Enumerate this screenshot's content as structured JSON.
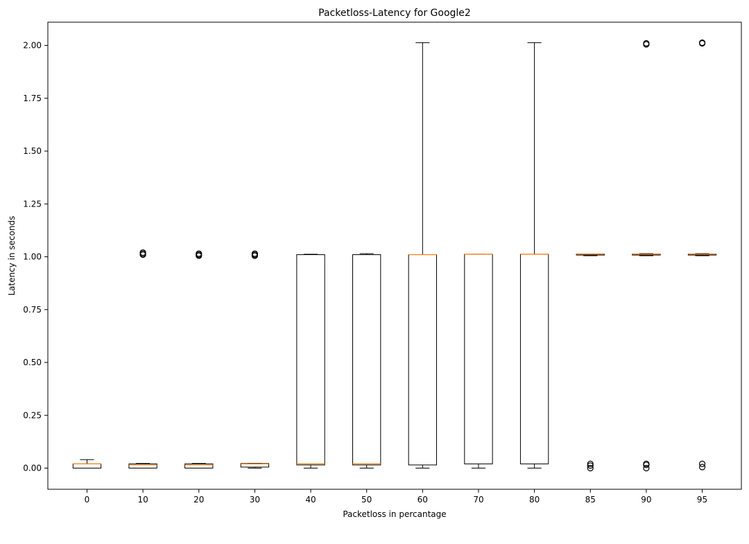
{
  "chart_data": {
    "type": "boxplot",
    "title": "Packetloss-Latency for Google2",
    "xlabel": "Packetloss in percantage",
    "ylabel": "Latency in seconds",
    "ylim": [
      -0.1,
      2.11
    ],
    "yticks": [
      "0.00",
      "0.25",
      "0.50",
      "0.75",
      "1.00",
      "1.25",
      "1.50",
      "1.75",
      "2.00"
    ],
    "grid": false,
    "colors": {
      "box": "#000000",
      "median": "#ff7f0e",
      "whisker": "#000000",
      "flier": "#000000"
    },
    "categories": [
      "0",
      "10",
      "20",
      "30",
      "40",
      "50",
      "60",
      "70",
      "80",
      "85",
      "90",
      "95"
    ],
    "boxes": [
      {
        "label": "0",
        "whislo": 0.0,
        "q1": 0.0,
        "med": 0.02,
        "q3": 0.02,
        "whishi": 0.04,
        "fliers": []
      },
      {
        "label": "10",
        "whislo": 0.0,
        "q1": 0.0,
        "med": 0.015,
        "q3": 0.02,
        "whishi": 0.022,
        "fliers": [
          1.01,
          1.015,
          1.02
        ]
      },
      {
        "label": "20",
        "whislo": 0.0,
        "q1": 0.0,
        "med": 0.015,
        "q3": 0.02,
        "whishi": 0.022,
        "fliers": [
          1.005,
          1.01,
          1.015
        ]
      },
      {
        "label": "30",
        "whislo": 0.0,
        "q1": 0.005,
        "med": 0.02,
        "q3": 0.022,
        "whishi": 0.022,
        "fliers": [
          1.005,
          1.01,
          1.015
        ]
      },
      {
        "label": "40",
        "whislo": 0.0,
        "q1": 0.015,
        "med": 0.02,
        "q3": 1.01,
        "whishi": 1.012,
        "fliers": []
      },
      {
        "label": "50",
        "whislo": 0.0,
        "q1": 0.015,
        "med": 0.02,
        "q3": 1.01,
        "whishi": 1.015,
        "fliers": []
      },
      {
        "label": "60",
        "whislo": 0.0,
        "q1": 0.015,
        "med": 1.01,
        "q3": 1.01,
        "whishi": 2.013,
        "fliers": []
      },
      {
        "label": "70",
        "whislo": 0.0,
        "q1": 0.02,
        "med": 1.012,
        "q3": 1.012,
        "whishi": 1.012,
        "fliers": []
      },
      {
        "label": "80",
        "whislo": 0.0,
        "q1": 0.02,
        "med": 1.012,
        "q3": 1.012,
        "whishi": 2.013,
        "fliers": []
      },
      {
        "label": "85",
        "whislo": 1.005,
        "q1": 1.008,
        "med": 1.012,
        "q3": 1.013,
        "whishi": 1.013,
        "fliers": [
          0.0,
          0.012,
          0.02
        ]
      },
      {
        "label": "90",
        "whislo": 1.005,
        "q1": 1.008,
        "med": 1.012,
        "q3": 1.013,
        "whishi": 1.015,
        "fliers": [
          0.0,
          0.015,
          0.02,
          2.005,
          2.01
        ]
      },
      {
        "label": "95",
        "whislo": 1.005,
        "q1": 1.008,
        "med": 1.012,
        "q3": 1.013,
        "whishi": 1.015,
        "fliers": [
          0.005,
          0.02,
          2.01,
          2.013
        ]
      }
    ]
  }
}
